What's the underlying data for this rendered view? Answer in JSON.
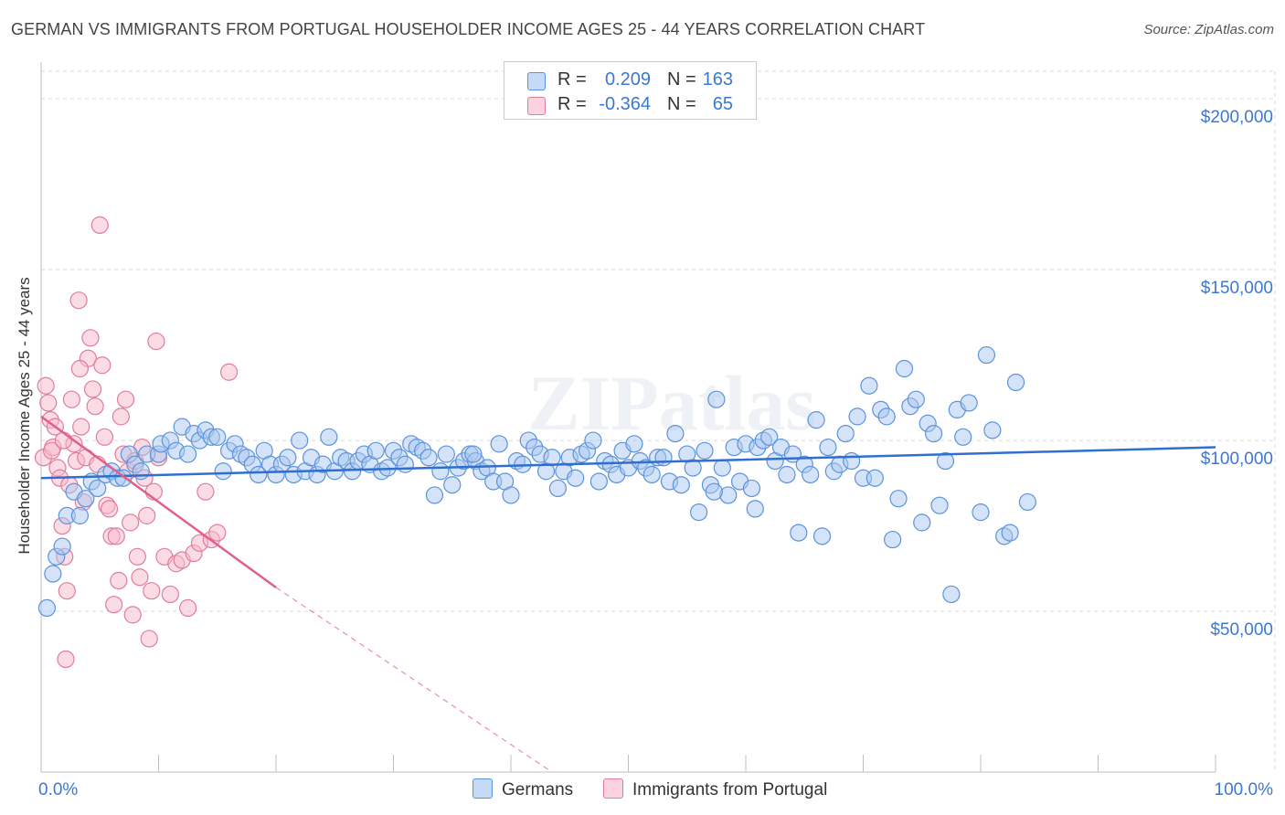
{
  "title": "GERMAN VS IMMIGRANTS FROM PORTUGAL HOUSEHOLDER INCOME AGES 25 - 44 YEARS CORRELATION CHART",
  "source": "Source: ZipAtlas.com",
  "watermark": "ZIPatlas",
  "legend": {
    "r_label": "R =",
    "n_label": "N =",
    "series": [
      {
        "name": "Germans",
        "r": "0.209",
        "n": "163",
        "fill": "#a9c8f0",
        "stroke": "#5b93dc"
      },
      {
        "name": "Immigrants from Portugal",
        "r": "-0.364",
        "n": "65",
        "fill": "#f7b9cc",
        "stroke": "#e07c9c"
      }
    ]
  },
  "colors": {
    "accent": "#3a78d4",
    "trend_blue": "#2f6fd0",
    "trend_pink": "#e0608a",
    "grid": "#d9d9d9"
  },
  "chart_data": {
    "type": "scatter",
    "title": "GERMAN VS IMMIGRANTS FROM PORTUGAL HOUSEHOLDER INCOME AGES 25 - 44 YEARS CORRELATION CHART",
    "xlabel": "",
    "ylabel": "Householder Income Ages 25 - 44 years",
    "x_tick_labels": [
      "0.0%",
      "100.0%"
    ],
    "y_tick_labels": [
      "$50,000",
      "$100,000",
      "$150,000",
      "$200,000"
    ],
    "y_ticks": [
      50000,
      100000,
      150000,
      200000
    ],
    "xlim": [
      0,
      100
    ],
    "ylim": [
      3000,
      208000
    ],
    "grid": true,
    "series": [
      {
        "name": "Germans",
        "trend": {
          "x": [
            0,
            100
          ],
          "y": [
            89000,
            98000
          ],
          "dashed_extension": false
        },
        "points": [
          [
            0.5,
            51000
          ],
          [
            1,
            61000
          ],
          [
            1.3,
            66000
          ],
          [
            1.8,
            69000
          ],
          [
            2.2,
            78000
          ],
          [
            2.8,
            85000
          ],
          [
            3.3,
            78000
          ],
          [
            3.8,
            83000
          ],
          [
            4.3,
            88000
          ],
          [
            4.8,
            86000
          ],
          [
            5.5,
            90000
          ],
          [
            6,
            91000
          ],
          [
            6.5,
            89000
          ],
          [
            7,
            89000
          ],
          [
            7.5,
            96000
          ],
          [
            8,
            93000
          ],
          [
            8.5,
            91000
          ],
          [
            9,
            96000
          ],
          [
            10,
            96000
          ],
          [
            10.2,
            99000
          ],
          [
            11,
            100000
          ],
          [
            11.5,
            97000
          ],
          [
            12,
            104000
          ],
          [
            12.5,
            96000
          ],
          [
            13,
            102000
          ],
          [
            13.5,
            100000
          ],
          [
            14,
            103000
          ],
          [
            14.5,
            101000
          ],
          [
            15,
            101000
          ],
          [
            15.5,
            91000
          ],
          [
            16,
            97000
          ],
          [
            16.5,
            99000
          ],
          [
            17,
            96000
          ],
          [
            17.5,
            95000
          ],
          [
            18,
            93000
          ],
          [
            18.5,
            90000
          ],
          [
            19,
            97000
          ],
          [
            19.5,
            93000
          ],
          [
            20,
            90000
          ],
          [
            20.5,
            93000
          ],
          [
            21,
            95000
          ],
          [
            21.5,
            90000
          ],
          [
            22,
            100000
          ],
          [
            22.5,
            91000
          ],
          [
            23,
            95000
          ],
          [
            23.5,
            90000
          ],
          [
            24,
            93000
          ],
          [
            24.5,
            101000
          ],
          [
            25,
            91000
          ],
          [
            25.5,
            95000
          ],
          [
            26,
            94000
          ],
          [
            26.5,
            91000
          ],
          [
            27,
            94000
          ],
          [
            27.5,
            96000
          ],
          [
            28,
            93000
          ],
          [
            28.5,
            97000
          ],
          [
            29,
            91000
          ],
          [
            29.5,
            92000
          ],
          [
            30,
            97000
          ],
          [
            30.5,
            95000
          ],
          [
            31,
            93000
          ],
          [
            31.5,
            99000
          ],
          [
            32,
            98000
          ],
          [
            32.5,
            97000
          ],
          [
            33,
            95000
          ],
          [
            33.5,
            84000
          ],
          [
            34,
            91000
          ],
          [
            34.5,
            96000
          ],
          [
            35,
            87000
          ],
          [
            35.5,
            92000
          ],
          [
            36,
            94000
          ],
          [
            36.5,
            96000
          ],
          [
            37,
            94000
          ],
          [
            37.5,
            91000
          ],
          [
            38,
            92000
          ],
          [
            38.5,
            88000
          ],
          [
            39,
            99000
          ],
          [
            39.5,
            88000
          ],
          [
            40,
            84000
          ],
          [
            40.5,
            94000
          ],
          [
            41,
            93000
          ],
          [
            41.5,
            100000
          ],
          [
            42,
            98000
          ],
          [
            42.5,
            96000
          ],
          [
            43,
            91000
          ],
          [
            43.5,
            95000
          ],
          [
            44,
            86000
          ],
          [
            44.5,
            91000
          ],
          [
            45,
            95000
          ],
          [
            45.5,
            89000
          ],
          [
            46,
            96000
          ],
          [
            46.5,
            97000
          ],
          [
            47,
            100000
          ],
          [
            47.5,
            88000
          ],
          [
            48,
            94000
          ],
          [
            48.5,
            93000
          ],
          [
            49,
            90000
          ],
          [
            49.5,
            97000
          ],
          [
            50,
            92000
          ],
          [
            50.5,
            99000
          ],
          [
            51,
            94000
          ],
          [
            51.5,
            92000
          ],
          [
            52,
            90000
          ],
          [
            52.5,
            95000
          ],
          [
            53,
            95000
          ],
          [
            53.5,
            88000
          ],
          [
            54,
            102000
          ],
          [
            54.5,
            87000
          ],
          [
            55,
            96000
          ],
          [
            55.5,
            92000
          ],
          [
            56,
            79000
          ],
          [
            56.5,
            97000
          ],
          [
            57,
            87000
          ],
          [
            57.5,
            112000
          ],
          [
            58,
            92000
          ],
          [
            58.5,
            84000
          ],
          [
            59,
            98000
          ],
          [
            59.5,
            88000
          ],
          [
            60,
            99000
          ],
          [
            60.5,
            86000
          ],
          [
            61,
            98000
          ],
          [
            61.5,
            100000
          ],
          [
            62,
            101000
          ],
          [
            62.5,
            94000
          ],
          [
            63,
            98000
          ],
          [
            63.5,
            90000
          ],
          [
            64,
            96000
          ],
          [
            64.5,
            73000
          ],
          [
            65,
            93000
          ],
          [
            65.5,
            90000
          ],
          [
            66,
            106000
          ],
          [
            66.5,
            72000
          ],
          [
            67,
            98000
          ],
          [
            67.5,
            91000
          ],
          [
            68,
            93000
          ],
          [
            68.5,
            102000
          ],
          [
            69,
            94000
          ],
          [
            69.5,
            107000
          ],
          [
            70,
            89000
          ],
          [
            70.5,
            116000
          ],
          [
            71,
            89000
          ],
          [
            71.5,
            109000
          ],
          [
            72,
            107000
          ],
          [
            72.5,
            71000
          ],
          [
            73,
            83000
          ],
          [
            73.5,
            121000
          ],
          [
            74,
            110000
          ],
          [
            74.5,
            112000
          ],
          [
            75,
            76000
          ],
          [
            75.5,
            105000
          ],
          [
            76,
            102000
          ],
          [
            76.5,
            81000
          ],
          [
            77,
            94000
          ],
          [
            77.5,
            55000
          ],
          [
            78,
            109000
          ],
          [
            78.5,
            101000
          ],
          [
            79,
            111000
          ],
          [
            80,
            79000
          ],
          [
            80.5,
            125000
          ],
          [
            81,
            103000
          ],
          [
            82,
            72000
          ],
          [
            82.5,
            73000
          ],
          [
            83,
            117000
          ],
          [
            84,
            82000
          ],
          [
            60.8,
            80000
          ],
          [
            57.3,
            85000
          ],
          [
            36.8,
            96000
          ]
        ]
      },
      {
        "name": "Immigrants from Portugal",
        "trend": {
          "x": [
            0,
            20
          ],
          "y": [
            107000,
            57000
          ],
          "dashed_extension": {
            "x": [
              20,
              43.5
            ],
            "y": [
              57000,
              3000
            ]
          }
        },
        "points": [
          [
            0.2,
            95000
          ],
          [
            0.4,
            116000
          ],
          [
            0.6,
            111000
          ],
          [
            0.8,
            106000
          ],
          [
            1,
            98000
          ],
          [
            1.2,
            104000
          ],
          [
            1.4,
            92000
          ],
          [
            1.6,
            89000
          ],
          [
            1.8,
            75000
          ],
          [
            2,
            66000
          ],
          [
            2.2,
            56000
          ],
          [
            2.4,
            87000
          ],
          [
            2.6,
            112000
          ],
          [
            2.8,
            99000
          ],
          [
            3,
            94000
          ],
          [
            3.2,
            141000
          ],
          [
            3.4,
            104000
          ],
          [
            3.6,
            82000
          ],
          [
            3.8,
            95000
          ],
          [
            4,
            124000
          ],
          [
            4.2,
            130000
          ],
          [
            4.4,
            115000
          ],
          [
            4.6,
            110000
          ],
          [
            4.8,
            93000
          ],
          [
            5,
            163000
          ],
          [
            5.2,
            122000
          ],
          [
            5.4,
            101000
          ],
          [
            5.6,
            81000
          ],
          [
            5.8,
            80000
          ],
          [
            6,
            72000
          ],
          [
            6.2,
            52000
          ],
          [
            6.4,
            72000
          ],
          [
            6.6,
            59000
          ],
          [
            6.8,
            107000
          ],
          [
            7,
            96000
          ],
          [
            7.2,
            112000
          ],
          [
            7.4,
            91000
          ],
          [
            7.6,
            76000
          ],
          [
            7.8,
            49000
          ],
          [
            8,
            94000
          ],
          [
            8.2,
            66000
          ],
          [
            8.4,
            60000
          ],
          [
            8.6,
            98000
          ],
          [
            8.8,
            89000
          ],
          [
            9,
            78000
          ],
          [
            9.2,
            42000
          ],
          [
            9.4,
            56000
          ],
          [
            9.6,
            85000
          ],
          [
            9.8,
            129000
          ],
          [
            10,
            95000
          ],
          [
            10.5,
            66000
          ],
          [
            11,
            55000
          ],
          [
            11.5,
            64000
          ],
          [
            12,
            65000
          ],
          [
            12.5,
            51000
          ],
          [
            13,
            67000
          ],
          [
            13.5,
            70000
          ],
          [
            14,
            85000
          ],
          [
            14.5,
            71000
          ],
          [
            15,
            73000
          ],
          [
            16,
            120000
          ],
          [
            2.1,
            36000
          ],
          [
            3.3,
            121000
          ],
          [
            0.9,
            97000
          ],
          [
            1.9,
            100000
          ]
        ]
      }
    ]
  }
}
